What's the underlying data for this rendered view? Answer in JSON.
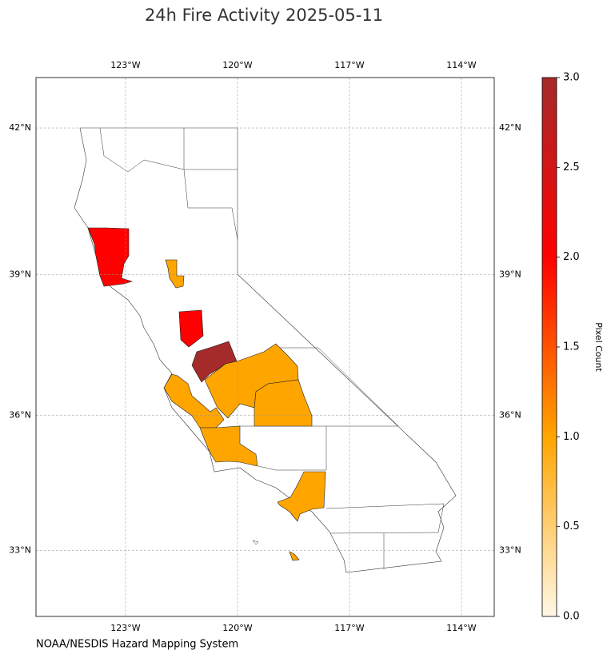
{
  "chart_data": {
    "type": "choropleth",
    "title": "24h Fire Activity 2025-05-11",
    "source": "NOAA/NESDIS Hazard Mapping System",
    "colorbar_label": "Pixel Count",
    "values": [
      2,
      1,
      2,
      3,
      1,
      1,
      1,
      1,
      1
    ],
    "xlim": [
      -125.4,
      -113.12
    ],
    "ylim": [
      31.5,
      43.0
    ],
    "xticks": [
      {
        "value": -123,
        "label": "123°W"
      },
      {
        "value": -120,
        "label": "120°W"
      },
      {
        "value": -117,
        "label": "117°W"
      },
      {
        "value": -114,
        "label": "114°W"
      }
    ],
    "yticks": [
      {
        "value": 42,
        "label": "42°N"
      },
      {
        "value": 39,
        "label": "39°N"
      },
      {
        "value": 36,
        "label": "36°N"
      },
      {
        "value": 33,
        "label": "33°N"
      }
    ],
    "colorbar_lim": [
      0,
      3
    ],
    "colorbar_ticks": [
      {
        "value": 0,
        "label": "0.0"
      },
      {
        "value": 0.5,
        "label": "0.5"
      },
      {
        "value": 1,
        "label": "1.0"
      },
      {
        "value": 1.5,
        "label": "1.5"
      },
      {
        "value": 2,
        "label": "2.0"
      },
      {
        "value": 2.5,
        "label": "2.5"
      },
      {
        "value": 3,
        "label": "3.0"
      }
    ],
    "colormap": [
      "#fff8e6",
      "#ffa500",
      "#ff0000",
      "#a52a2a"
    ],
    "grid": true
  }
}
